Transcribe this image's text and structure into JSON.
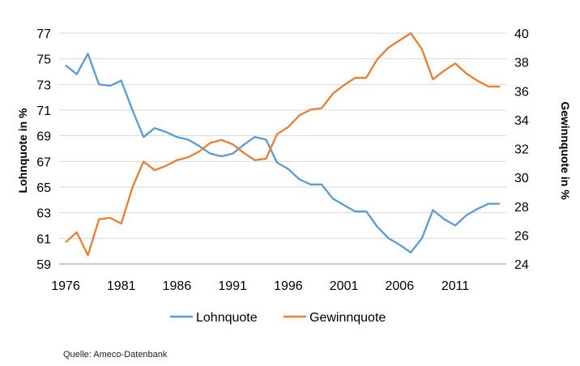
{
  "chart_data": {
    "type": "line",
    "title": "",
    "xlabel": "",
    "ylabel": "Lohnquote in %",
    "y2label": "Gewinnquote in %",
    "ylim": [
      59,
      77
    ],
    "y2lim": [
      24,
      40
    ],
    "yticks": [
      59,
      61,
      63,
      65,
      67,
      69,
      71,
      73,
      75,
      77
    ],
    "y2ticks": [
      24,
      26,
      28,
      30,
      32,
      34,
      36,
      38,
      40
    ],
    "xticks": [
      1976,
      1981,
      1986,
      1991,
      1996,
      2001,
      2006,
      2011
    ],
    "grid": true,
    "legend": "bottom",
    "x": [
      1976,
      1977,
      1978,
      1979,
      1980,
      1981,
      1982,
      1983,
      1984,
      1985,
      1986,
      1987,
      1988,
      1989,
      1990,
      1991,
      1992,
      1993,
      1994,
      1995,
      1996,
      1997,
      1998,
      1999,
      2000,
      2001,
      2002,
      2003,
      2004,
      2005,
      2006,
      2007,
      2008,
      2009,
      2010,
      2011,
      2012,
      2013,
      2014,
      2015
    ],
    "series": [
      {
        "name": "Lohnquote",
        "axis": "left",
        "color": "#5b9bd5",
        "values": [
          74.5,
          73.8,
          75.4,
          73.0,
          72.9,
          73.3,
          71.0,
          68.9,
          69.6,
          69.3,
          68.9,
          68.7,
          68.2,
          67.6,
          67.4,
          67.6,
          68.3,
          68.9,
          68.7,
          66.9,
          66.4,
          65.6,
          65.2,
          65.2,
          64.1,
          63.6,
          63.1,
          63.1,
          61.9,
          61.0,
          60.5,
          59.9,
          61.0,
          63.2,
          62.5,
          62.0,
          62.8,
          63.3,
          63.7,
          63.7
        ]
      },
      {
        "name": "Gewinnquote",
        "axis": "right",
        "color": "#ed7d31",
        "values": [
          25.5,
          26.2,
          24.6,
          27.1,
          27.2,
          26.8,
          29.3,
          31.1,
          30.5,
          30.8,
          31.2,
          31.4,
          31.8,
          32.4,
          32.6,
          32.3,
          31.7,
          31.2,
          31.3,
          33.0,
          33.5,
          34.3,
          34.7,
          34.8,
          35.8,
          36.4,
          36.9,
          36.9,
          38.2,
          39.0,
          39.5,
          40.0,
          38.9,
          36.8,
          37.4,
          37.9,
          37.2,
          36.7,
          36.3,
          36.3
        ]
      }
    ]
  },
  "source": "Quelle: Ameco-Datenbank"
}
